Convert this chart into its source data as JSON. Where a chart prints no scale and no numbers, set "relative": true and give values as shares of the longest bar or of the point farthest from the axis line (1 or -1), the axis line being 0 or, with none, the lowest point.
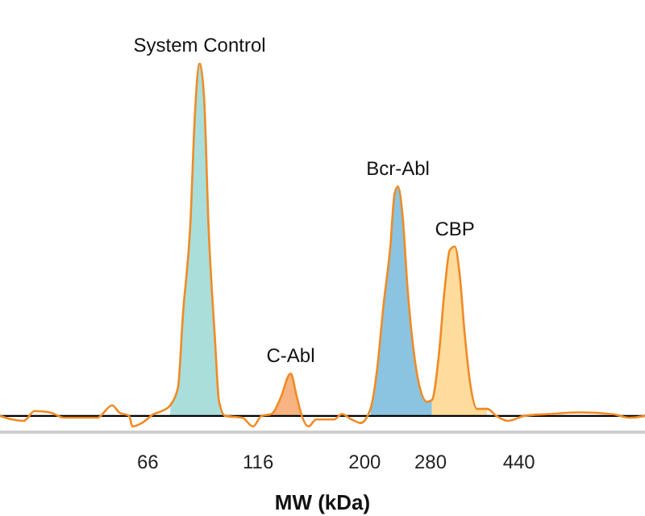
{
  "chart_data": {
    "type": "line",
    "relative": true,
    "log": "x",
    "marker": "none",
    "xlabel": "MW (kDa)",
    "xlim": [
      31,
      838
    ],
    "xticks": [
      66,
      116,
      200,
      280,
      440
    ],
    "series": [
      {
        "type": "area",
        "name": "System Control",
        "color": "#aadedb",
        "x": [
          74,
          77,
          79,
          82,
          84,
          86,
          88,
          90,
          93,
          95,
          98
        ],
        "values": [
          0.03,
          0.08,
          0.29,
          0.54,
          0.86,
          1,
          0.9,
          0.54,
          0.22,
          0.04,
          0
        ]
      },
      {
        "type": "area",
        "name": "C-Abl",
        "color": "#f7b382",
        "x": [
          124,
          126,
          130,
          137,
          141,
          145
        ],
        "values": [
          0.005,
          0.014,
          0.05,
          0.12,
          0.06,
          0
        ]
      },
      {
        "type": "area",
        "name": "Bcr-Abl",
        "color": "#8ac4e0",
        "x": [
          206,
          213,
          220,
          228,
          233,
          237,
          243,
          249,
          256,
          264,
          275,
          282
        ],
        "values": [
          0.02,
          0.13,
          0.31,
          0.48,
          0.63,
          0.65,
          0.56,
          0.36,
          0.2,
          0.09,
          0.04,
          0.045
        ]
      },
      {
        "type": "area",
        "name": "CBP",
        "color": "#fedc9e",
        "x": [
          282,
          292,
          301,
          309,
          317,
          325,
          333,
          344,
          355,
          374
        ],
        "values": [
          0.045,
          0.17,
          0.36,
          0.47,
          0.48,
          0.4,
          0.24,
          0.08,
          0.02,
          0.02
        ]
      },
      {
        "color": "#f08a24",
        "x": [
          31,
          33,
          35,
          37,
          40,
          43,
          47,
          51,
          55,
          57,
          60,
          61,
          64,
          68,
          71,
          74,
          77,
          79,
          82,
          84,
          86,
          88,
          90,
          93,
          95,
          98,
          107,
          113,
          118,
          124,
          126,
          130,
          137,
          141,
          145,
          150,
          156,
          161,
          171,
          178,
          187,
          196,
          206,
          213,
          220,
          228,
          233,
          237,
          243,
          249,
          256,
          264,
          275,
          282,
          292,
          301,
          309,
          317,
          325,
          333,
          344,
          355,
          374,
          392,
          416,
          452,
          511,
          603,
          711,
          773,
          838
        ],
        "values": [
          0,
          -0.01,
          -0.014,
          0.014,
          0.01,
          -0.005,
          -0.005,
          -0.005,
          0.03,
          0.01,
          0,
          -0.03,
          -0.02,
          0.005,
          0.014,
          0.03,
          0.08,
          0.29,
          0.54,
          0.86,
          1,
          0.9,
          0.54,
          0.22,
          0.04,
          0,
          -0.005,
          -0.03,
          0,
          0.005,
          0.014,
          0.05,
          0.12,
          0.06,
          0,
          -0.03,
          -0.01,
          -0.01,
          -0.01,
          0.005,
          -0.01,
          -0.02,
          0.02,
          0.13,
          0.31,
          0.48,
          0.63,
          0.65,
          0.56,
          0.36,
          0.2,
          0.09,
          0.04,
          0.045,
          0.17,
          0.36,
          0.47,
          0.48,
          0.4,
          0.24,
          0.08,
          0.02,
          0.02,
          0,
          -0.014,
          0,
          0.005,
          0.01,
          0.005,
          -0.005,
          0
        ]
      }
    ]
  }
}
